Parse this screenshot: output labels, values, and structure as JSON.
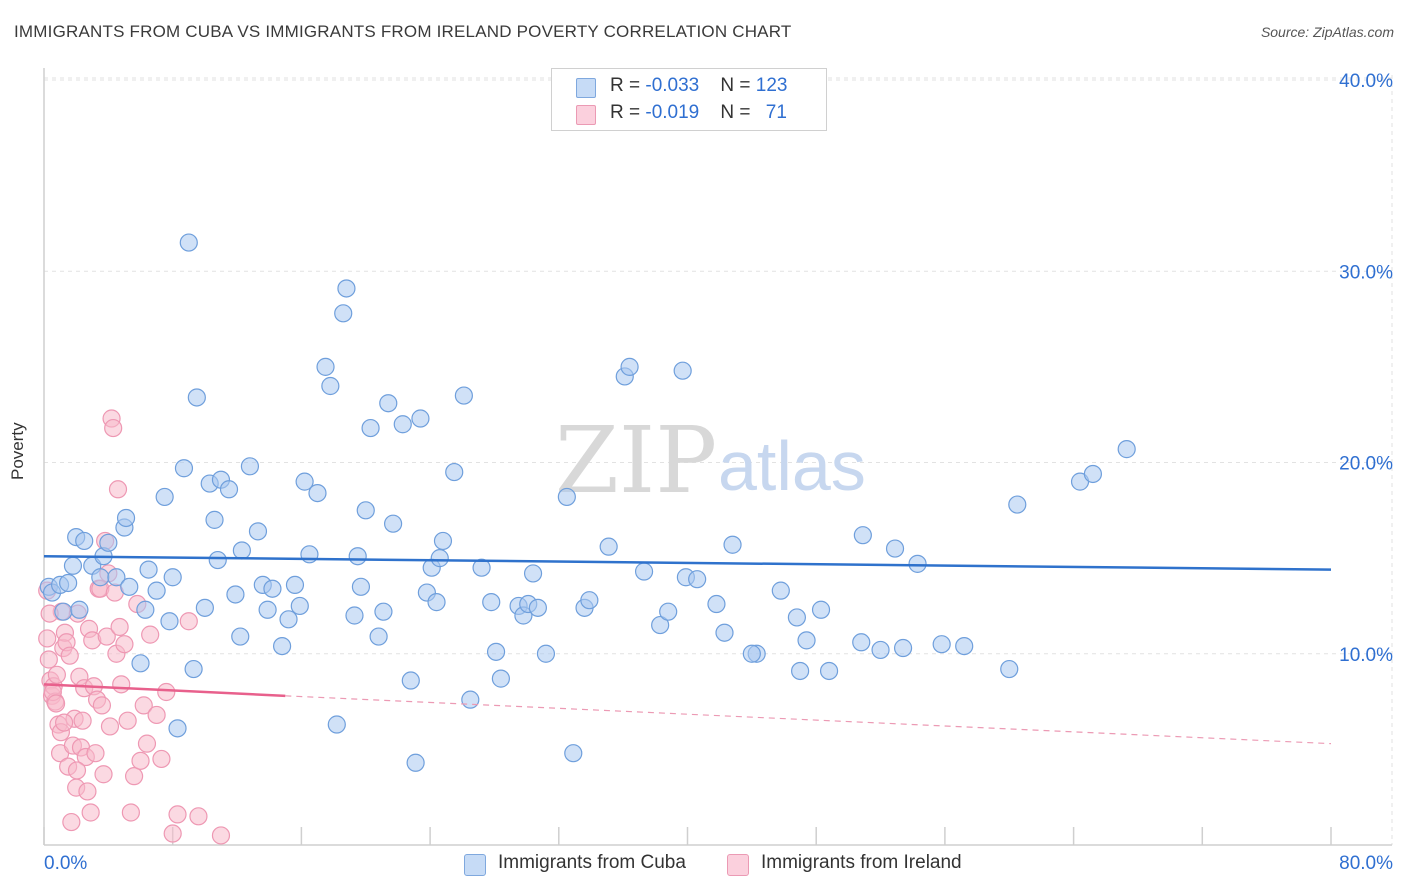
{
  "header": {
    "title": "IMMIGRANTS FROM CUBA VS IMMIGRANTS FROM IRELAND POVERTY CORRELATION CHART",
    "source": "Source: ZipAtlas.com"
  },
  "watermark": {
    "zip": "ZIP",
    "atlas": "atlas"
  },
  "legend": {
    "rows": [
      {
        "r_label": "R = ",
        "r_value": "-0.033",
        "n_label": "N = ",
        "n_value": "123",
        "color": "#a9c8f0"
      },
      {
        "r_label": "R = ",
        "r_value": "-0.019",
        "n_label": "N = ",
        "n_value": "71",
        "color": "#f7b9cb"
      }
    ]
  },
  "bottom_legend": {
    "items": [
      {
        "label": "Immigrants from Cuba",
        "color": "#a9c8f0"
      },
      {
        "label": "Immigrants from Ireland",
        "color": "#f7b9cb"
      }
    ]
  },
  "chart_data": {
    "type": "scatter",
    "title": "IMMIGRANTS FROM CUBA VS IMMIGRANTS FROM IRELAND POVERTY CORRELATION CHART",
    "ylabel": "Poverty",
    "xlabel": "",
    "xlim": [
      0,
      80
    ],
    "ylim": [
      0,
      40
    ],
    "x_ticks": [
      "0.0%",
      "80.0%"
    ],
    "y_ticks": [
      "10.0%",
      "20.0%",
      "30.0%",
      "40.0%"
    ],
    "y_tick_values": [
      10,
      20,
      30,
      40
    ],
    "grid": "horizontal dashed",
    "legend_position": "top-center",
    "colors": {
      "cuba": "#4a86d4",
      "cuba_fill": "#a9c8f0",
      "ireland": "#e8608c",
      "ireland_fill": "#f7b9cb",
      "tick_label": "#2f6fd1"
    },
    "series": [
      {
        "name": "Immigrants from Cuba",
        "trend": {
          "x": [
            0,
            80
          ],
          "y": [
            15.1,
            14.4
          ]
        },
        "points": [
          [
            0.3,
            13.5
          ],
          [
            0.5,
            13.2
          ],
          [
            1,
            13.6
          ],
          [
            1.2,
            12.2
          ],
          [
            1.5,
            13.7
          ],
          [
            1.8,
            14.6
          ],
          [
            2,
            16.1
          ],
          [
            2.2,
            12.3
          ],
          [
            2.5,
            15.9
          ],
          [
            3,
            14.6
          ],
          [
            3.5,
            14
          ],
          [
            3.7,
            15.1
          ],
          [
            4,
            15.8
          ],
          [
            4.5,
            14
          ],
          [
            5,
            16.6
          ],
          [
            5.1,
            17.1
          ],
          [
            5.3,
            13.5
          ],
          [
            6,
            9.5
          ],
          [
            6.3,
            12.3
          ],
          [
            6.5,
            14.4
          ],
          [
            7,
            13.3
          ],
          [
            7.5,
            18.2
          ],
          [
            7.8,
            11.7
          ],
          [
            8,
            14
          ],
          [
            8.3,
            6.1
          ],
          [
            8.7,
            19.7
          ],
          [
            9,
            31.5
          ],
          [
            9.3,
            9.2
          ],
          [
            9.5,
            23.4
          ],
          [
            10,
            12.4
          ],
          [
            10.3,
            18.9
          ],
          [
            10.6,
            17
          ],
          [
            10.8,
            14.9
          ],
          [
            11,
            19.1
          ],
          [
            11.5,
            18.6
          ],
          [
            11.9,
            13.1
          ],
          [
            12.2,
            10.9
          ],
          [
            12.3,
            15.4
          ],
          [
            12.8,
            19.8
          ],
          [
            13.3,
            16.4
          ],
          [
            13.6,
            13.6
          ],
          [
            13.9,
            12.3
          ],
          [
            14.2,
            13.4
          ],
          [
            14.8,
            10.4
          ],
          [
            15.2,
            11.8
          ],
          [
            15.6,
            13.6
          ],
          [
            15.9,
            12.5
          ],
          [
            16.2,
            19
          ],
          [
            16.5,
            15.2
          ],
          [
            17,
            18.4
          ],
          [
            17.5,
            25
          ],
          [
            17.8,
            24
          ],
          [
            18.2,
            6.3
          ],
          [
            18.6,
            27.8
          ],
          [
            18.8,
            29.1
          ],
          [
            19.3,
            12
          ],
          [
            19.5,
            15.1
          ],
          [
            19.7,
            13.5
          ],
          [
            20,
            17.5
          ],
          [
            20.3,
            21.8
          ],
          [
            20.8,
            10.9
          ],
          [
            21.1,
            12.2
          ],
          [
            21.4,
            23.1
          ],
          [
            21.7,
            16.8
          ],
          [
            22.3,
            22
          ],
          [
            22.8,
            8.6
          ],
          [
            23.1,
            4.3
          ],
          [
            23.4,
            22.3
          ],
          [
            23.8,
            13.2
          ],
          [
            24.1,
            14.5
          ],
          [
            24.4,
            12.7
          ],
          [
            24.6,
            15
          ],
          [
            24.8,
            15.9
          ],
          [
            25.5,
            19.5
          ],
          [
            26.1,
            23.5
          ],
          [
            26.5,
            7.6
          ],
          [
            27.2,
            14.5
          ],
          [
            27.8,
            12.7
          ],
          [
            28.1,
            10.1
          ],
          [
            28.4,
            8.7
          ],
          [
            29.5,
            12.5
          ],
          [
            29.8,
            12
          ],
          [
            30.1,
            12.6
          ],
          [
            30.4,
            14.2
          ],
          [
            30.7,
            12.4
          ],
          [
            31.2,
            10
          ],
          [
            32.5,
            18.2
          ],
          [
            32.9,
            4.8
          ],
          [
            33.6,
            12.4
          ],
          [
            33.9,
            12.8
          ],
          [
            35.1,
            15.6
          ],
          [
            36.1,
            24.5
          ],
          [
            36.4,
            25
          ],
          [
            37.3,
            14.3
          ],
          [
            38.3,
            11.5
          ],
          [
            38.8,
            12.2
          ],
          [
            39.7,
            24.8
          ],
          [
            39.9,
            14
          ],
          [
            40.6,
            13.9
          ],
          [
            41.8,
            12.6
          ],
          [
            42.3,
            11.1
          ],
          [
            42.8,
            15.7
          ],
          [
            44.3,
            10
          ],
          [
            45.8,
            13.3
          ],
          [
            46.8,
            11.9
          ],
          [
            47.4,
            10.7
          ],
          [
            48.3,
            12.3
          ],
          [
            48.8,
            9.1
          ],
          [
            50.8,
            10.6
          ],
          [
            50.9,
            16.2
          ],
          [
            52.9,
            15.5
          ],
          [
            53.4,
            10.3
          ],
          [
            54.3,
            14.7
          ],
          [
            55.8,
            10.5
          ],
          [
            57.2,
            10.4
          ],
          [
            60.5,
            17.8
          ],
          [
            64.4,
            19
          ],
          [
            65.2,
            19.4
          ],
          [
            67.3,
            20.7
          ],
          [
            60,
            9.2
          ],
          [
            47,
            9.1
          ],
          [
            52,
            10.2
          ],
          [
            44,
            10
          ]
        ]
      },
      {
        "name": "Immigrants from Ireland",
        "trend": {
          "x": [
            0,
            15
          ],
          "y": [
            8.4,
            7.8
          ]
        },
        "trend_dashed": {
          "x": [
            15,
            80
          ],
          "y": [
            7.8,
            5.3
          ]
        },
        "points": [
          [
            0.2,
            10.8
          ],
          [
            0.3,
            9.7
          ],
          [
            0.4,
            8.6
          ],
          [
            0.5,
            7.8
          ],
          [
            0.6,
            8.3
          ],
          [
            0.7,
            7.5
          ],
          [
            0.8,
            8.9
          ],
          [
            0.9,
            6.3
          ],
          [
            1,
            4.8
          ],
          [
            1.1,
            12.2
          ],
          [
            1.2,
            10.3
          ],
          [
            1.3,
            11.1
          ],
          [
            1.4,
            10.6
          ],
          [
            1.5,
            4.1
          ],
          [
            1.6,
            9.9
          ],
          [
            1.7,
            1.2
          ],
          [
            1.8,
            5.2
          ],
          [
            1.9,
            6.6
          ],
          [
            2,
            3
          ],
          [
            2.1,
            12.1
          ],
          [
            2.2,
            8.8
          ],
          [
            2.3,
            5.1
          ],
          [
            2.4,
            6.5
          ],
          [
            2.5,
            8.2
          ],
          [
            2.6,
            4.6
          ],
          [
            2.7,
            2.8
          ],
          [
            2.8,
            11.3
          ],
          [
            2.9,
            1.7
          ],
          [
            3,
            10.7
          ],
          [
            3.1,
            8.3
          ],
          [
            3.2,
            4.8
          ],
          [
            3.3,
            7.6
          ],
          [
            3.4,
            13.4
          ],
          [
            3.5,
            13.4
          ],
          [
            3.6,
            7.3
          ],
          [
            3.7,
            3.7
          ],
          [
            3.8,
            15.9
          ],
          [
            3.9,
            10.9
          ],
          [
            4,
            14.2
          ],
          [
            4.1,
            6.2
          ],
          [
            4.2,
            22.3
          ],
          [
            4.3,
            21.8
          ],
          [
            4.4,
            13.2
          ],
          [
            4.5,
            10
          ],
          [
            4.6,
            18.6
          ],
          [
            4.7,
            11.4
          ],
          [
            4.8,
            8.4
          ],
          [
            5,
            10.5
          ],
          [
            5.2,
            6.5
          ],
          [
            5.4,
            1.7
          ],
          [
            5.6,
            3.6
          ],
          [
            5.8,
            12.6
          ],
          [
            6,
            4.4
          ],
          [
            6.2,
            7.3
          ],
          [
            6.4,
            5.3
          ],
          [
            6.6,
            11
          ],
          [
            7,
            6.8
          ],
          [
            7.3,
            4.5
          ],
          [
            7.6,
            8
          ],
          [
            8,
            0.6
          ],
          [
            8.3,
            1.6
          ],
          [
            9,
            11.7
          ],
          [
            9.6,
            1.5
          ],
          [
            11,
            0.5
          ],
          [
            0.2,
            13.3
          ],
          [
            0.35,
            12.1
          ],
          [
            0.55,
            8
          ],
          [
            0.75,
            7.4
          ],
          [
            1.05,
            5.9
          ],
          [
            1.25,
            6.4
          ],
          [
            2.05,
            3.9
          ]
        ]
      }
    ]
  }
}
